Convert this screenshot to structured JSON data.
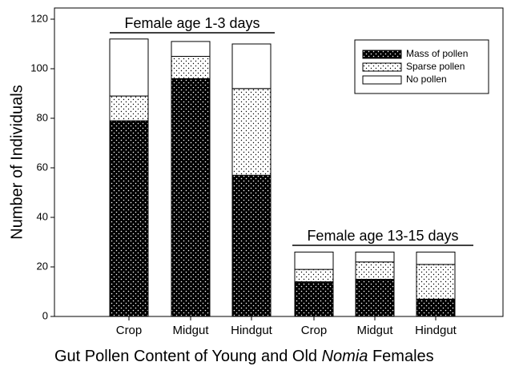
{
  "chart_data": {
    "type": "stacked_bar",
    "categories": [
      "Crop",
      "Midgut",
      "Hindgut",
      "Crop",
      "Midgut",
      "Hindgut"
    ],
    "series": [
      {
        "name": "Mass of pollen",
        "color": "#000000",
        "values": [
          79,
          96,
          57,
          14,
          15,
          7
        ]
      },
      {
        "name": "Sparse pollen",
        "color": "#ffffff",
        "values": [
          10,
          9,
          35,
          5,
          7,
          14
        ]
      },
      {
        "name": "No pollen",
        "color": "#ffffff",
        "values": [
          23,
          6,
          18,
          7,
          4,
          5
        ]
      }
    ],
    "ylabel": "Number of Individuals",
    "xlabel": [
      "Gut Pollen Content of Young and Old ",
      "Nomia",
      " Females"
    ],
    "annotations": [
      "Female age 1-3 days",
      "Female age 13-15 days"
    ],
    "ylim": [
      0,
      120
    ],
    "yticks": [
      0,
      20,
      40,
      60,
      80,
      100,
      120
    ],
    "legend": "top-right"
  }
}
